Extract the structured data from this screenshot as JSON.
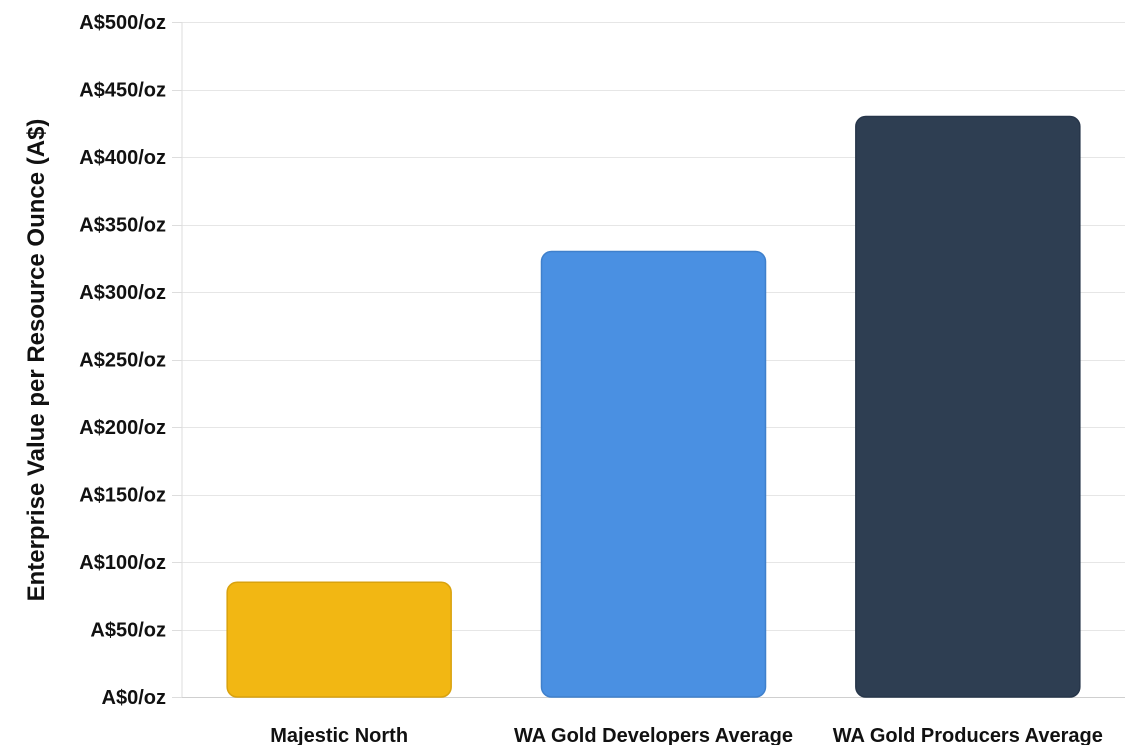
{
  "chart_data": {
    "type": "bar",
    "title": "",
    "xlabel": "",
    "ylabel": "Enterprise Value per Resource Ounce (A$)",
    "categories": [
      "Majestic North",
      "WA Gold Developers Average",
      "WA Gold Producers Average"
    ],
    "values": [
      85,
      330,
      430
    ],
    "colors": [
      "#F2B713",
      "#4A90E2",
      "#2E3E52"
    ],
    "border_colors": [
      "#D9A20E",
      "#3F80CC",
      "#27364A"
    ],
    "ylim": [
      0,
      500
    ],
    "yticks": [
      0,
      50,
      100,
      150,
      200,
      250,
      300,
      350,
      400,
      450,
      500
    ],
    "ytick_labels": [
      "A$0/oz",
      "A$50/oz",
      "A$100/oz",
      "A$150/oz",
      "A$200/oz",
      "A$250/oz",
      "A$300/oz",
      "A$350/oz",
      "A$400/oz",
      "A$450/oz",
      "A$500/oz"
    ],
    "grid": true,
    "legend": "none"
  }
}
